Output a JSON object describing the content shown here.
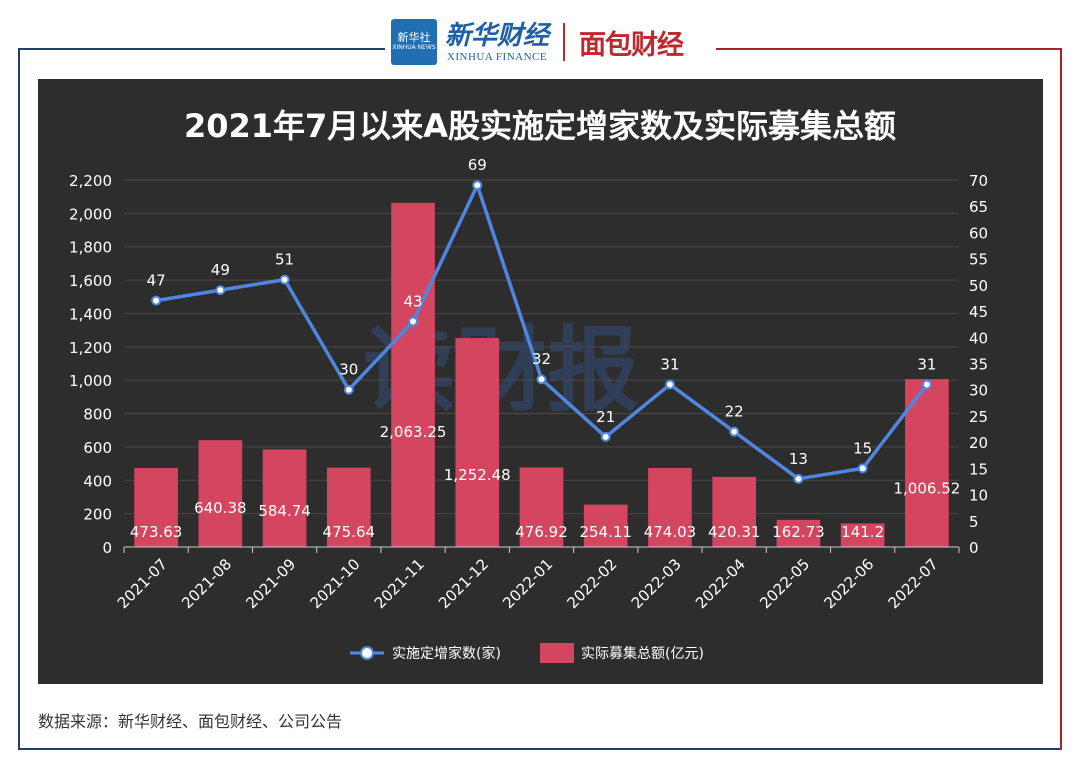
{
  "header": {
    "xinhua_badge": "新华社",
    "xinhua_badge_small": "XINHUA NEWS",
    "xinhua_cn": "新华财经",
    "xinhua_en": "XINHUA FINANCE",
    "mianbao": "面包财经"
  },
  "watermark": "读财报",
  "source": "数据来源：新华财经、面包财经、公司公告",
  "colors": {
    "panel": "#2d2d2d",
    "bar": "#d4455f",
    "line": "#4f86e0",
    "frame_left": "#1f3f6e",
    "frame_right": "#a5242c"
  },
  "chart_data": {
    "type": "bar",
    "title": "2021年7月以来A股实施定增家数及实际募集总额",
    "categories": [
      "2021-07",
      "2021-08",
      "2021-09",
      "2021-10",
      "2021-11",
      "2021-12",
      "2022-01",
      "2022-02",
      "2022-03",
      "2022-04",
      "2022-05",
      "2022-06",
      "2022-07"
    ],
    "series": [
      {
        "name": "实际募集总额(亿元)",
        "type": "bar",
        "axis": "left",
        "values": [
          473.63,
          640.38,
          584.74,
          475.64,
          2063.25,
          1252.48,
          476.92,
          254.11,
          474.03,
          420.31,
          162.73,
          141.2,
          1006.52
        ],
        "labels": [
          "473.63",
          "640.38",
          "584.74",
          "475.64",
          "2,063.25",
          "1,252.48",
          "476.92",
          "254.11",
          "474.03",
          "420.31",
          "162.73",
          "141.2",
          "1,006.52"
        ]
      },
      {
        "name": "实施定增家数(家)",
        "type": "line",
        "axis": "right",
        "values": [
          47,
          49,
          51,
          30,
          43,
          69,
          32,
          21,
          31,
          22,
          13,
          15,
          31
        ],
        "labels": [
          "47",
          "49",
          "51",
          "30",
          "43",
          "69",
          "32",
          "21",
          "31",
          "22",
          "13",
          "15",
          "31"
        ]
      }
    ],
    "y_left": {
      "range": [
        0,
        2200
      ],
      "ticks": [
        "0",
        "200",
        "400",
        "600",
        "800",
        "1,000",
        "1,200",
        "1,400",
        "1,600",
        "1,800",
        "2,000",
        "2,200"
      ]
    },
    "y_right": {
      "range": [
        0,
        70
      ],
      "ticks": [
        "0",
        "5",
        "10",
        "15",
        "20",
        "25",
        "30",
        "35",
        "40",
        "45",
        "50",
        "55",
        "60",
        "65",
        "70"
      ]
    },
    "grid": true,
    "legend": "bottom-center"
  }
}
